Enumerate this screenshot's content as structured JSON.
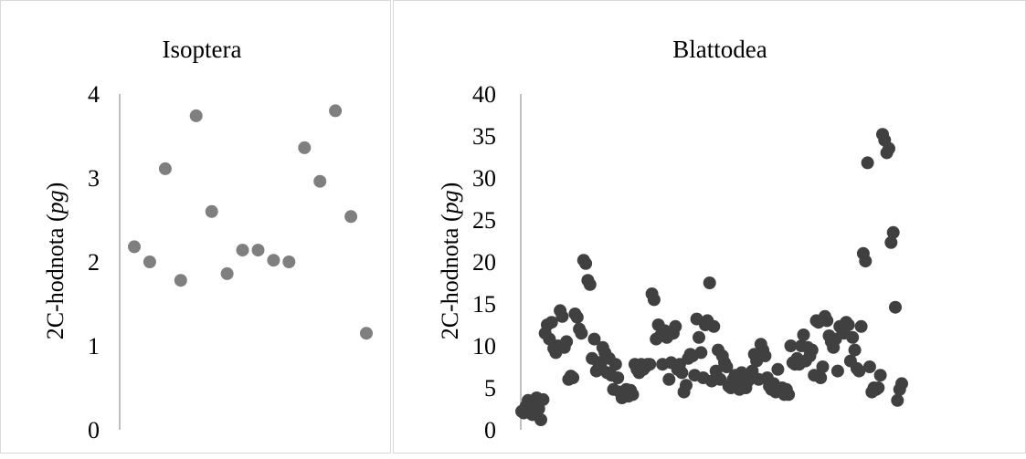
{
  "chart_data": [
    {
      "type": "scatter",
      "title": "Isoptera",
      "ylabel_main": "2C-hodnota (",
      "ylabel_unit": "pg",
      "ylabel_close": ")",
      "ylim": [
        0,
        4
      ],
      "yticks": [
        "0",
        "1",
        "2",
        "3",
        "4"
      ],
      "grid": false,
      "marker_color": "#7f7f7f",
      "y": [
        2.18,
        2.0,
        3.11,
        1.78,
        3.74,
        2.6,
        1.86,
        2.14,
        2.14,
        2.02,
        2.0,
        3.36,
        2.96,
        3.8,
        2.54,
        1.15
      ]
    },
    {
      "type": "scatter",
      "title": "Blattodea",
      "ylabel_main": "2C-hodnota (",
      "ylabel_unit": "pg",
      "ylabel_close": ")",
      "ylim": [
        0,
        40
      ],
      "yticks": [
        "0",
        "5",
        "10",
        "15",
        "20",
        "25",
        "30",
        "35",
        "40"
      ],
      "grid": false,
      "marker_color": "#404040",
      "y": [
        2.2,
        2.0,
        2.8,
        3.5,
        2.4,
        1.8,
        3.0,
        3.8,
        2.5,
        1.2,
        3.6,
        11.5,
        12.5,
        10.8,
        12.8,
        9.7,
        9.2,
        10.0,
        14.2,
        13.5,
        9.8,
        10.5,
        6.0,
        6.4,
        6.2,
        13.8,
        13.4,
        12.0,
        11.5,
        20.2,
        19.8,
        17.8,
        17.3,
        8.5,
        10.8,
        7.0,
        8.0,
        7.5,
        9.8,
        9.2,
        6.8,
        8.5,
        6.5,
        4.8,
        7.8,
        6.2,
        4.5,
        3.8,
        4.2,
        4.8,
        4.0,
        4.7,
        4.2,
        7.8,
        7.2,
        6.8,
        7.8,
        7.2,
        7.5,
        7.8,
        7.8,
        16.2,
        15.5,
        10.8,
        12.5,
        11.2,
        7.8,
        11.8,
        11.0,
        6.0,
        8.0,
        11.5,
        12.3,
        7.2,
        7.8,
        6.8,
        4.5,
        5.3,
        8.5,
        9.0,
        8.8,
        6.5,
        13.2,
        11.0,
        9.2,
        6.2,
        12.5,
        13.0,
        17.5,
        5.8,
        12.3,
        7.0,
        9.5,
        6.0,
        8.8,
        8.0,
        7.5,
        5.2,
        5.0,
        6.0,
        6.5,
        5.5,
        4.8,
        6.8,
        5.5,
        5.0,
        5.8,
        6.2,
        7.0,
        9.0,
        8.2,
        6.0,
        10.2,
        9.5,
        8.8,
        6.2,
        5.2,
        4.8,
        5.5,
        4.5,
        7.2,
        4.6,
        5.0,
        4.2,
        4.8,
        4.2,
        10.0,
        8.0,
        7.8,
        8.5,
        7.8,
        10.0,
        11.3,
        8.2,
        9.8,
        8.8,
        9.5,
        6.5,
        13.0,
        12.8,
        6.2,
        7.5,
        13.5,
        13.0,
        11.2,
        10.5,
        9.8,
        10.8,
        7.0,
        12.3,
        12.0,
        11.5,
        12.8,
        12.5,
        8.2,
        11.0,
        9.5,
        7.3,
        7.0,
        12.3,
        21.0,
        20.1,
        31.8,
        7.5,
        4.5,
        5.0,
        4.8,
        5.0,
        6.5,
        35.2,
        34.5,
        33.0,
        33.5,
        22.3,
        23.5,
        14.6,
        3.5,
        4.8,
        5.5
      ]
    }
  ]
}
